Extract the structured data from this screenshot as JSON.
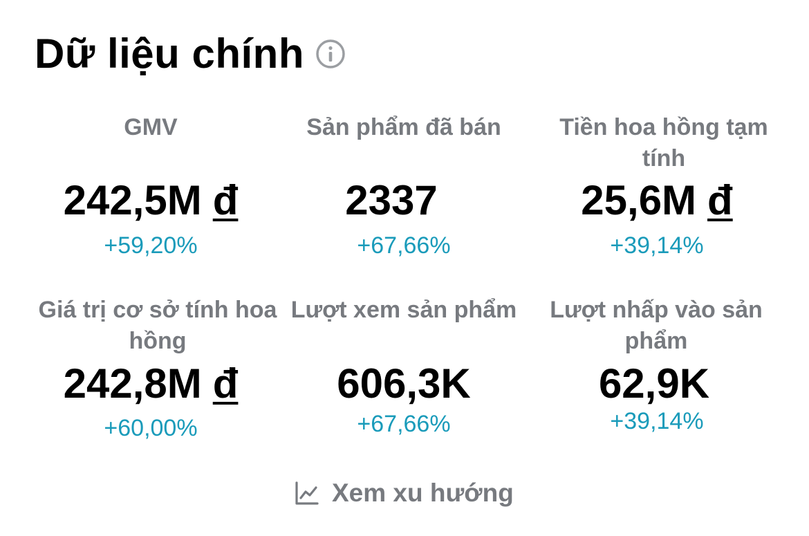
{
  "header": {
    "title": "Dữ liệu chính"
  },
  "metrics": [
    {
      "label": "GMV",
      "value": "242,5M",
      "currency": "đ",
      "delta": "+59,20%"
    },
    {
      "label": "Sản phẩm đã bán",
      "value": "2337",
      "currency": "",
      "delta": "+67,66%"
    },
    {
      "label": "Tiền hoa hồng tạm tính",
      "value": "25,6M",
      "currency": "đ",
      "delta": "+39,14%"
    },
    {
      "label": "Giá trị cơ sở tính hoa hồng",
      "value": "242,8M",
      "currency": "đ",
      "delta": "+60,00%"
    },
    {
      "label": "Lượt xem sản phẩm",
      "value": "606,3K",
      "currency": "",
      "delta": "+67,66%"
    },
    {
      "label": "Lượt nhấp vào sản phẩm",
      "value": "62,9K",
      "currency": "",
      "delta": "+39,14%"
    }
  ],
  "trend": {
    "label": "Xem xu hướng",
    "icon": "line-chart-icon"
  },
  "colors": {
    "delta": "#1a9bba",
    "label": "#777a7f",
    "icon": "#9b9ea2"
  }
}
